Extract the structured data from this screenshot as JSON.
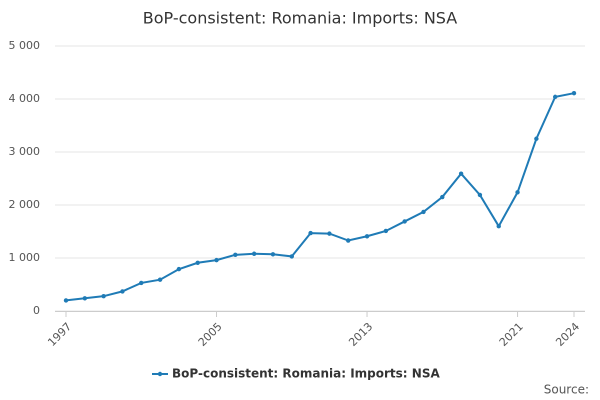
{
  "chart_data": {
    "type": "line",
    "title": "BoP-consistent: Romania: Imports: NSA",
    "x": [
      1997,
      1998,
      1999,
      2000,
      2001,
      2002,
      2003,
      2004,
      2005,
      2006,
      2007,
      2008,
      2009,
      2010,
      2011,
      2012,
      2013,
      2014,
      2015,
      2016,
      2017,
      2018,
      2019,
      2020,
      2021,
      2022,
      2023,
      2024
    ],
    "series": [
      {
        "name": "BoP-consistent: Romania: Imports: NSA",
        "color": "#1f7bb6",
        "values": [
          200,
          240,
          280,
          370,
          530,
          590,
          790,
          910,
          960,
          1060,
          1080,
          1070,
          1030,
          1470,
          1460,
          1330,
          1410,
          1510,
          1690,
          1870,
          2150,
          2590,
          2190,
          1600,
          2240,
          3250,
          4040,
          4110
        ]
      }
    ],
    "xlim": [
      1997,
      2024
    ],
    "xticks": [
      1997,
      2005,
      2013,
      2021,
      2024
    ],
    "ylim": [
      0,
      5000
    ],
    "yticks": [
      0,
      {
        "value": 1000,
        "label": "1 000"
      },
      {
        "value": 2000,
        "label": "2 000"
      },
      {
        "value": 3000,
        "label": "3 000"
      },
      {
        "value": 4000,
        "label": "4 000"
      },
      {
        "value": 5000,
        "label": "5 000"
      }
    ],
    "grid": true,
    "legend": "bottom",
    "source": "Source:"
  }
}
